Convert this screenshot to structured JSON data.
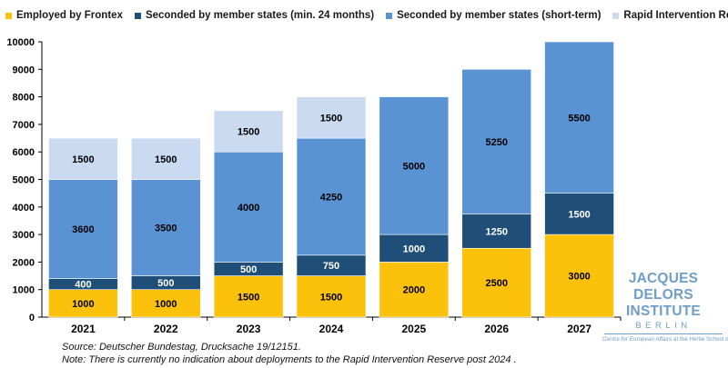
{
  "legend": {
    "employed": "Employed by Frontex",
    "seconded_long": "Seconded by member states (min. 24 months)",
    "seconded_short": "Seconded by member states (short-term)",
    "rapid": "Rapid Intervention Reserve"
  },
  "colors": {
    "employed": "#fcc10a",
    "seconded_long": "#1f4e79",
    "seconded_short": "#5a93d4",
    "rapid": "#c9daf1",
    "grid": "#d9d9d9",
    "axis": "#000000"
  },
  "chart_data": {
    "type": "bar",
    "stacked": true,
    "categories": [
      "2021",
      "2022",
      "2023",
      "2024",
      "2025",
      "2026",
      "2027"
    ],
    "series": [
      {
        "name": "Employed by Frontex",
        "values": [
          1000,
          1000,
          1500,
          1500,
          2000,
          2500,
          3000
        ]
      },
      {
        "name": "Seconded by member states (min. 24 months)",
        "values": [
          400,
          500,
          500,
          750,
          1000,
          1250,
          1500
        ]
      },
      {
        "name": "Seconded by member states (short-term)",
        "values": [
          3600,
          3500,
          4000,
          4250,
          5000,
          5250,
          5500
        ]
      },
      {
        "name": "Rapid Intervention Reserve",
        "values": [
          1500,
          1500,
          1500,
          1500,
          null,
          null,
          null
        ]
      }
    ],
    "yticks": [
      0,
      1000,
      2000,
      3000,
      4000,
      5000,
      6000,
      7000,
      8000,
      9000,
      10000
    ],
    "ylim": [
      0,
      10000
    ],
    "grid": false,
    "legend_position": "top-left"
  },
  "notes": {
    "source": "Source: Deutscher Bundestag, Drucksache 19/12151.",
    "note": "Note: There is currently no indication about deployments to the Rapid Intervention Reserve post 2024 ."
  },
  "logo": {
    "title": "JACQUES DELORS INSTITUTE",
    "subtitle": "BERLIN",
    "tagline": "Centre for European Affairs at the Hertie School of Governance"
  }
}
